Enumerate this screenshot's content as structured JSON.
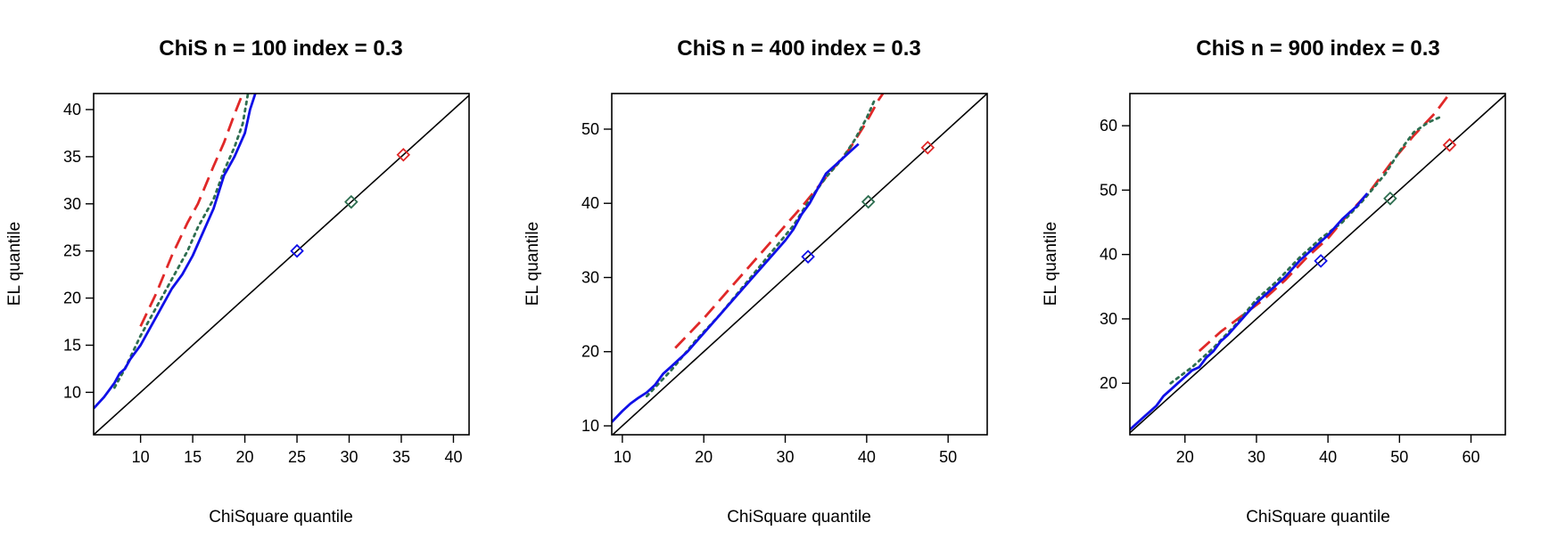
{
  "colors": {
    "blue": "#1010e8",
    "red": "#e02828",
    "green": "#2e6e50",
    "axis": "#000000"
  },
  "chart_data": [
    {
      "type": "line",
      "title": "ChiS n = 100 index = 0.3",
      "xlabel": "ChiSquare quantile",
      "ylabel": "EL quantile",
      "xlim": [
        5.5,
        41.5
      ],
      "ylim": [
        5.5,
        41.7
      ],
      "xticks": [
        10,
        15,
        20,
        25,
        30,
        35,
        40
      ],
      "yticks": [
        10,
        15,
        20,
        25,
        30,
        35,
        40
      ],
      "series": [
        {
          "color": "red",
          "style": "dashed",
          "x": [
            10.0,
            11.5,
            13.0,
            14.5,
            15.5,
            17.0,
            18.0,
            19.0,
            19.8
          ],
          "y": [
            17.0,
            20.5,
            24.5,
            28.0,
            30.0,
            34.0,
            36.5,
            39.5,
            41.7
          ]
        },
        {
          "color": "green",
          "style": "dotted",
          "x": [
            7.5,
            8.5,
            10.0,
            11.5,
            13.0,
            14.5,
            15.5,
            17.0,
            18.0,
            19.0,
            19.8,
            20.3
          ],
          "y": [
            10.5,
            12.5,
            16.0,
            19.0,
            22.0,
            25.0,
            27.5,
            30.5,
            33.5,
            36.0,
            38.5,
            41.7
          ]
        },
        {
          "color": "blue",
          "style": "solid",
          "x": [
            5.5,
            6.5,
            7.5,
            8.0,
            8.5,
            9.0,
            10.0,
            11.0,
            12.0,
            13.0,
            14.0,
            15.0,
            16.0,
            17.0,
            18.0,
            19.0,
            20.0,
            20.5,
            21.0
          ],
          "y": [
            8.3,
            9.5,
            11.0,
            12.0,
            12.5,
            13.5,
            15.0,
            17.0,
            19.0,
            21.0,
            22.5,
            24.5,
            27.0,
            29.5,
            33.0,
            35.0,
            37.5,
            40.0,
            41.7
          ]
        },
        {
          "color": "black",
          "style": "solid",
          "x": [
            5.5,
            41.5
          ],
          "y": [
            5.5,
            41.5
          ]
        }
      ],
      "markers": [
        {
          "color": "blue",
          "x": 25.0,
          "y": 25.0
        },
        {
          "color": "green",
          "x": 30.2,
          "y": 30.2
        },
        {
          "color": "red",
          "x": 35.2,
          "y": 35.2
        }
      ]
    },
    {
      "type": "line",
      "title": "ChiS n = 400 index = 0.3",
      "xlabel": "ChiSquare quantile",
      "ylabel": "EL quantile",
      "xlim": [
        8.7,
        54.8
      ],
      "ylim": [
        8.8,
        54.8
      ],
      "xticks": [
        10,
        20,
        30,
        40,
        50
      ],
      "yticks": [
        10,
        20,
        30,
        40,
        50
      ],
      "series": [
        {
          "color": "red",
          "style": "dashed",
          "x": [
            16.5,
            20.0,
            24.0,
            28.0,
            32.0,
            35.0,
            38.0,
            40.0,
            41.5,
            42.0
          ],
          "y": [
            20.5,
            24.5,
            29.5,
            34.5,
            39.5,
            43.5,
            47.5,
            51.0,
            54.0,
            54.8
          ]
        },
        {
          "color": "green",
          "style": "dotted",
          "x": [
            13.0,
            16.0,
            19.0,
            22.0,
            25.0,
            28.0,
            31.0,
            33.0,
            35.0,
            37.0,
            38.5,
            40.0,
            41.0
          ],
          "y": [
            14.0,
            17.5,
            21.5,
            25.0,
            29.0,
            33.0,
            37.0,
            40.5,
            43.5,
            46.0,
            48.5,
            51.5,
            54.0
          ]
        },
        {
          "color": "blue",
          "style": "solid",
          "x": [
            8.7,
            10.0,
            11.0,
            12.0,
            13.0,
            14.0,
            15.0,
            16.0,
            18.0,
            20.0,
            22.0,
            24.0,
            26.0,
            28.0,
            30.0,
            31.0,
            32.0,
            33.0,
            34.0,
            35.0,
            36.0,
            37.0,
            38.0,
            39.0
          ],
          "y": [
            10.5,
            12.0,
            13.0,
            13.8,
            14.5,
            15.5,
            17.0,
            18.0,
            20.0,
            22.5,
            25.0,
            27.5,
            30.0,
            32.5,
            35.0,
            36.5,
            38.5,
            40.0,
            42.0,
            44.0,
            45.0,
            46.0,
            47.0,
            48.0
          ]
        },
        {
          "color": "black",
          "style": "solid",
          "x": [
            8.7,
            54.8
          ],
          "y": [
            8.7,
            54.8
          ]
        }
      ],
      "markers": [
        {
          "color": "blue",
          "x": 32.8,
          "y": 32.8
        },
        {
          "color": "green",
          "x": 40.2,
          "y": 40.2
        },
        {
          "color": "red",
          "x": 47.5,
          "y": 47.5
        }
      ]
    },
    {
      "type": "line",
      "title": "ChiS n = 900 index = 0.3",
      "xlabel": "ChiSquare quantile",
      "ylabel": "EL quantile",
      "xlim": [
        12.3,
        64.8
      ],
      "ylim": [
        12.0,
        65.0
      ],
      "xticks": [
        20,
        30,
        40,
        50,
        60
      ],
      "yticks": [
        20,
        30,
        40,
        50,
        60
      ],
      "series": [
        {
          "color": "red",
          "style": "dashed",
          "x": [
            22.0,
            25.0,
            28.0,
            31.0,
            34.0,
            37.0,
            40.0,
            43.0,
            46.0,
            49.0,
            52.0,
            55.0,
            57.0
          ],
          "y": [
            25.0,
            28.0,
            30.5,
            33.0,
            36.0,
            39.5,
            42.5,
            46.5,
            50.0,
            54.5,
            58.5,
            62.0,
            65.0
          ]
        },
        {
          "color": "green",
          "style": "dotted",
          "x": [
            18.0,
            21.0,
            24.0,
            27.0,
            30.0,
            33.0,
            36.0,
            39.0,
            42.0,
            45.0,
            48.0,
            50.0,
            52.0,
            54.0,
            56.0
          ],
          "y": [
            20.0,
            22.5,
            25.5,
            29.0,
            33.0,
            36.0,
            39.5,
            42.5,
            45.0,
            48.5,
            52.5,
            56.0,
            59.0,
            60.5,
            61.5
          ]
        },
        {
          "color": "blue",
          "style": "solid",
          "x": [
            12.3,
            13.0,
            14.0,
            15.0,
            16.0,
            17.0,
            18.0,
            19.0,
            20.0,
            21.0,
            22.0,
            23.0,
            24.0,
            25.0,
            26.0,
            28.0,
            30.0,
            32.0,
            34.0,
            36.0,
            38.0,
            40.0,
            42.0,
            44.0,
            45.5
          ],
          "y": [
            12.8,
            13.5,
            14.5,
            15.5,
            16.5,
            18.0,
            19.0,
            20.0,
            21.0,
            22.0,
            22.5,
            24.0,
            25.0,
            26.5,
            27.5,
            30.0,
            32.5,
            34.5,
            36.5,
            39.0,
            41.0,
            43.0,
            45.5,
            47.5,
            49.5
          ]
        },
        {
          "color": "black",
          "style": "solid",
          "x": [
            12.3,
            64.8
          ],
          "y": [
            12.3,
            64.8
          ]
        }
      ],
      "markers": [
        {
          "color": "blue",
          "x": 39.0,
          "y": 39.0
        },
        {
          "color": "green",
          "x": 48.7,
          "y": 48.7
        },
        {
          "color": "red",
          "x": 57.0,
          "y": 57.0
        }
      ]
    }
  ]
}
